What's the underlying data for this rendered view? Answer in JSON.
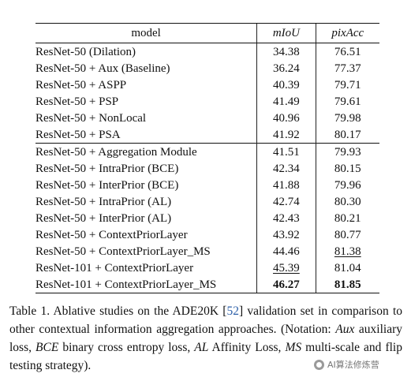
{
  "table": {
    "headers": {
      "model": "model",
      "miou": "mIoU",
      "pixacc": "pixAcc"
    },
    "groups": [
      [
        {
          "model": "ResNet-50 (Dilation)",
          "miou": "34.38",
          "pixacc": "76.51"
        },
        {
          "model": "ResNet-50 + Aux (Baseline)",
          "miou": "36.24",
          "pixacc": "77.37"
        },
        {
          "model": "ResNet-50 + ASPP",
          "miou": "40.39",
          "pixacc": "79.71"
        },
        {
          "model": "ResNet-50 + PSP",
          "miou": "41.49",
          "pixacc": "79.61"
        },
        {
          "model": "ResNet-50 + NonLocal",
          "miou": "40.96",
          "pixacc": "79.98"
        },
        {
          "model": "ResNet-50 + PSA",
          "miou": "41.92",
          "pixacc": "80.17"
        }
      ],
      [
        {
          "model": "ResNet-50 + Aggregation Module",
          "miou": "41.51",
          "pixacc": "79.93"
        },
        {
          "model": "ResNet-50 + IntraPrior (BCE)",
          "miou": "42.34",
          "pixacc": "80.15"
        },
        {
          "model": "ResNet-50 + InterPrior (BCE)",
          "miou": "41.88",
          "pixacc": "79.96"
        },
        {
          "model": "ResNet-50 + IntraPrior (AL)",
          "miou": "42.74",
          "pixacc": "80.30"
        },
        {
          "model": "ResNet-50 + InterPrior (AL)",
          "miou": "42.43",
          "pixacc": "80.21"
        },
        {
          "model": "ResNet-50 + ContextPriorLayer",
          "miou": "43.92",
          "pixacc": "80.77"
        },
        {
          "model": "ResNet-50 + ContextPriorLayer_MS",
          "miou": "44.46",
          "pixacc": "81.38",
          "pixacc_style": "underline"
        },
        {
          "model": "ResNet-101 + ContextPriorLayer",
          "miou": "45.39",
          "pixacc": "81.04",
          "miou_style": "underline"
        },
        {
          "model": "ResNet-101 + ContextPriorLayer_MS",
          "miou": "46.27",
          "pixacc": "81.85",
          "miou_style": "bold",
          "pixacc_style": "bold"
        }
      ]
    ]
  },
  "caption": {
    "t1": "Table 1. Ablative studies on the ADE20K [",
    "cite": "52",
    "t2": "] validation set in comparison to other contextual information aggregation approaches. (Notation: ",
    "aux": "Aux",
    "t3": " auxiliary loss, ",
    "bce": "BCE",
    "t4": " binary cross entropy loss, ",
    "al": "AL",
    "t5": " Affinity Loss, ",
    "ms": "MS",
    "t6": " multi-scale and flip testing strategy)."
  },
  "watermark": {
    "text": "AI算法修炼营",
    "icon": "wechat-icon"
  },
  "colors": {
    "citation": "#2c5fa8"
  }
}
